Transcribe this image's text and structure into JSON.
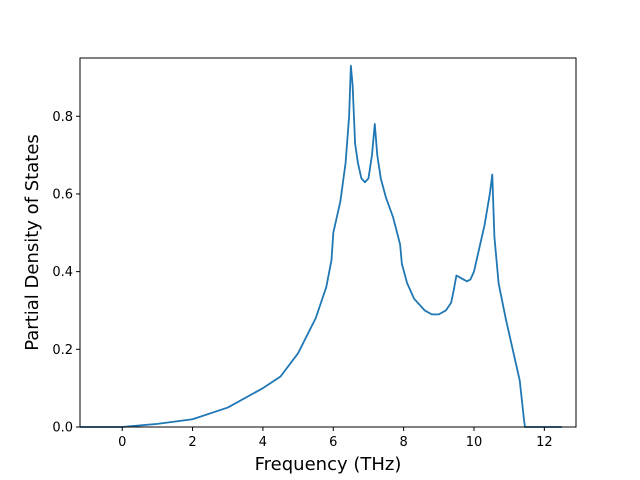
{
  "chart_data": {
    "type": "line",
    "title": "",
    "xlabel": "Frequency (THz)",
    "ylabel": "Partial Density of States",
    "xlim": [
      -1.2,
      12.9
    ],
    "ylim": [
      0,
      0.95
    ],
    "xticks": [
      0,
      2,
      4,
      6,
      8,
      10,
      12
    ],
    "yticks": [
      0.0,
      0.2,
      0.4,
      0.6,
      0.8
    ],
    "ytick_labels": [
      "0.0",
      "0.2",
      "0.4",
      "0.6",
      "0.8"
    ],
    "grid": false,
    "legend": "none",
    "series": [
      {
        "color": "#1f77b4",
        "x": [
          -1.2,
          0.0,
          1.0,
          2.0,
          3.0,
          4.0,
          4.5,
          5.0,
          5.5,
          5.8,
          5.95,
          6.0,
          6.2,
          6.35,
          6.45,
          6.5,
          6.55,
          6.62,
          6.7,
          6.8,
          6.9,
          7.0,
          7.1,
          7.18,
          7.25,
          7.35,
          7.5,
          7.7,
          7.9,
          7.95,
          8.1,
          8.3,
          8.6,
          8.8,
          9.0,
          9.2,
          9.35,
          9.42,
          9.5,
          9.6,
          9.7,
          9.8,
          9.9,
          10.0,
          10.1,
          10.3,
          10.45,
          10.52,
          10.58,
          10.7,
          10.9,
          11.1,
          11.3,
          11.42,
          11.45,
          12.5
        ],
        "y": [
          0.0,
          0.0,
          0.008,
          0.02,
          0.05,
          0.1,
          0.13,
          0.19,
          0.28,
          0.36,
          0.43,
          0.5,
          0.58,
          0.68,
          0.8,
          0.93,
          0.88,
          0.73,
          0.68,
          0.64,
          0.63,
          0.64,
          0.7,
          0.78,
          0.7,
          0.64,
          0.59,
          0.54,
          0.47,
          0.42,
          0.37,
          0.33,
          0.3,
          0.29,
          0.29,
          0.3,
          0.32,
          0.35,
          0.39,
          0.385,
          0.38,
          0.375,
          0.38,
          0.4,
          0.44,
          0.52,
          0.6,
          0.65,
          0.49,
          0.37,
          0.28,
          0.2,
          0.12,
          0.02,
          0.0,
          0.0
        ]
      }
    ]
  }
}
